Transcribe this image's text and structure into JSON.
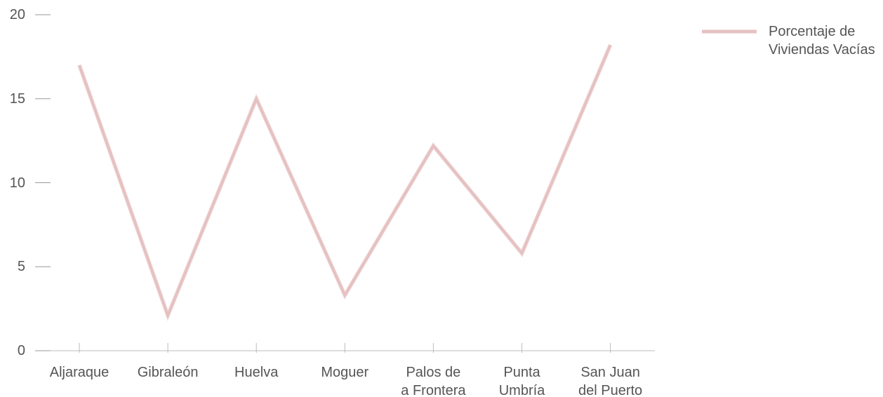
{
  "chart_data": {
    "type": "line",
    "categories": [
      "Aljaraque",
      "Gibraleón",
      "Huelva",
      "Moguer",
      "Palos de\na Frontera",
      "Punta\nUmbría",
      "San Juan\ndel Puerto"
    ],
    "series": [
      {
        "name": "Porcentaje de\nViviendas Vacías",
        "color": "#e6c1c1",
        "values": [
          17.0,
          2.1,
          15.0,
          3.3,
          12.2,
          5.8,
          18.2
        ]
      }
    ],
    "ylim": [
      0,
      20
    ],
    "yticks": [
      0,
      5,
      10,
      15,
      20
    ],
    "grid": false,
    "legend": "top-right"
  }
}
